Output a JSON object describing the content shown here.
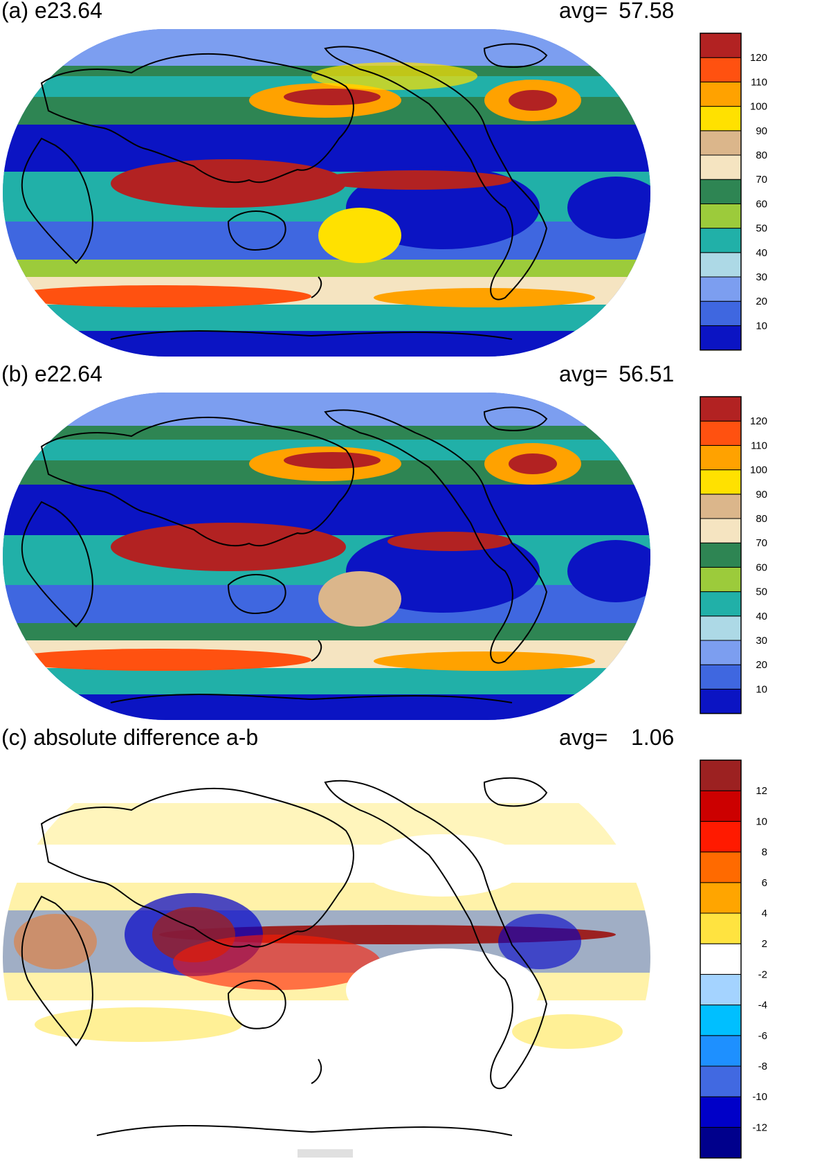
{
  "chart_data": [
    {
      "type": "heatmap",
      "title": "(a) e23.64",
      "avg_label": "avg=",
      "avg_value": "57.58",
      "colorbar": {
        "ticks": [
          "10",
          "20",
          "30",
          "40",
          "50",
          "60",
          "70",
          "80",
          "90",
          "100",
          "110",
          "120"
        ],
        "colors": [
          "#0b14c3",
          "#3f67e0",
          "#7c9ef0",
          "#add9e6",
          "#21b0a8",
          "#9ccb3b",
          "#2e8553",
          "#f5e4c1",
          "#dbb68b",
          "#ffe100",
          "#ffa200",
          "#ff5110",
          "#b22222"
        ]
      }
    },
    {
      "type": "heatmap",
      "title": "(b) e22.64",
      "avg_label": "avg=",
      "avg_value": "56.51",
      "colorbar": {
        "ticks": [
          "10",
          "20",
          "30",
          "40",
          "50",
          "60",
          "70",
          "80",
          "90",
          "100",
          "110",
          "120"
        ],
        "colors": [
          "#0b14c3",
          "#3f67e0",
          "#7c9ef0",
          "#add9e6",
          "#21b0a8",
          "#9ccb3b",
          "#2e8553",
          "#f5e4c1",
          "#dbb68b",
          "#ffe100",
          "#ffa200",
          "#ff5110",
          "#b22222"
        ]
      }
    },
    {
      "type": "heatmap",
      "title": "(c) absolute difference a-b",
      "avg_label": "avg=",
      "avg_value": "1.06",
      "colorbar": {
        "ticks": [
          "-12",
          "-10",
          "-8",
          "-6",
          "-4",
          "-2",
          "2",
          "4",
          "6",
          "8",
          "10",
          "12"
        ],
        "colors": [
          "#00008c",
          "#0000c8",
          "#4169e1",
          "#1e90ff",
          "#00bfff",
          "#a4d3ff",
          "#ffffff",
          "#ffe340",
          "#ffa500",
          "#ff6a00",
          "#ff1a00",
          "#cc0000",
          "#9c2121"
        ]
      }
    }
  ]
}
